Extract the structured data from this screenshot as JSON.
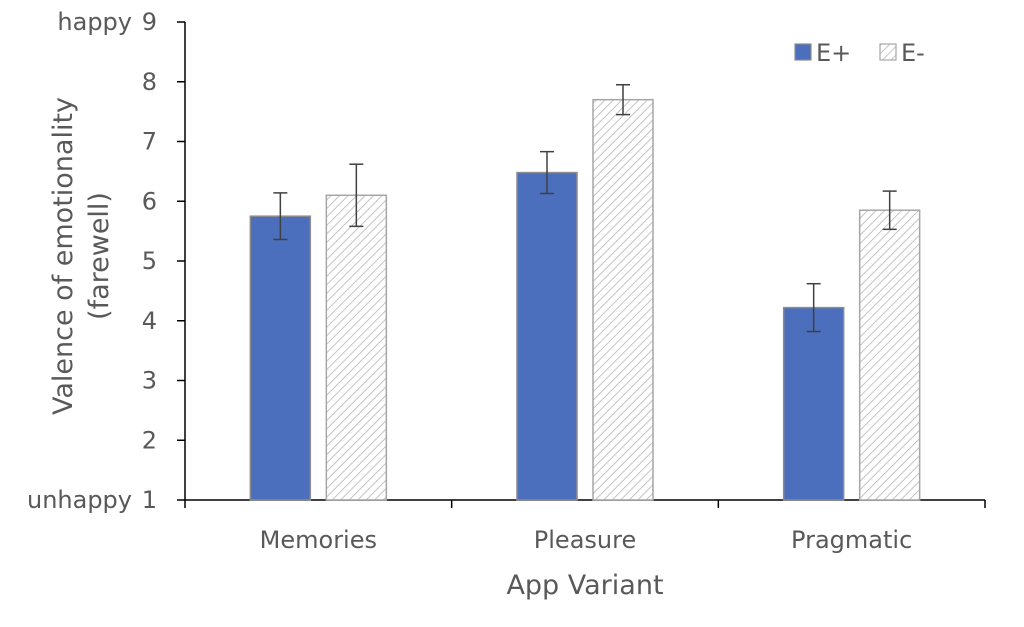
{
  "chart_data": {
    "type": "bar",
    "xlabel": "App Variant",
    "ylabel": [
      "Valence of emotionality",
      "(farewell)"
    ],
    "ylim": [
      1,
      9
    ],
    "yticks": [
      1,
      2,
      3,
      4,
      5,
      6,
      7,
      8,
      9
    ],
    "y_anchor_labels": {
      "top": "happy",
      "bottom": "unhappy"
    },
    "categories": [
      "Memories",
      "Pleasure",
      "Pragmatic"
    ],
    "legend_position": "top-right",
    "grid": false,
    "series": [
      {
        "name": "E+",
        "values": [
          5.75,
          6.48,
          4.22
        ],
        "error": [
          0.39,
          0.35,
          0.4
        ],
        "color": "#4c6fbd",
        "pattern": "solid"
      },
      {
        "name": "E-",
        "values": [
          6.1,
          7.7,
          5.85
        ],
        "error": [
          0.52,
          0.25,
          0.32
        ],
        "color": "#ffffff",
        "pattern": "diagonal-hatch"
      }
    ]
  }
}
